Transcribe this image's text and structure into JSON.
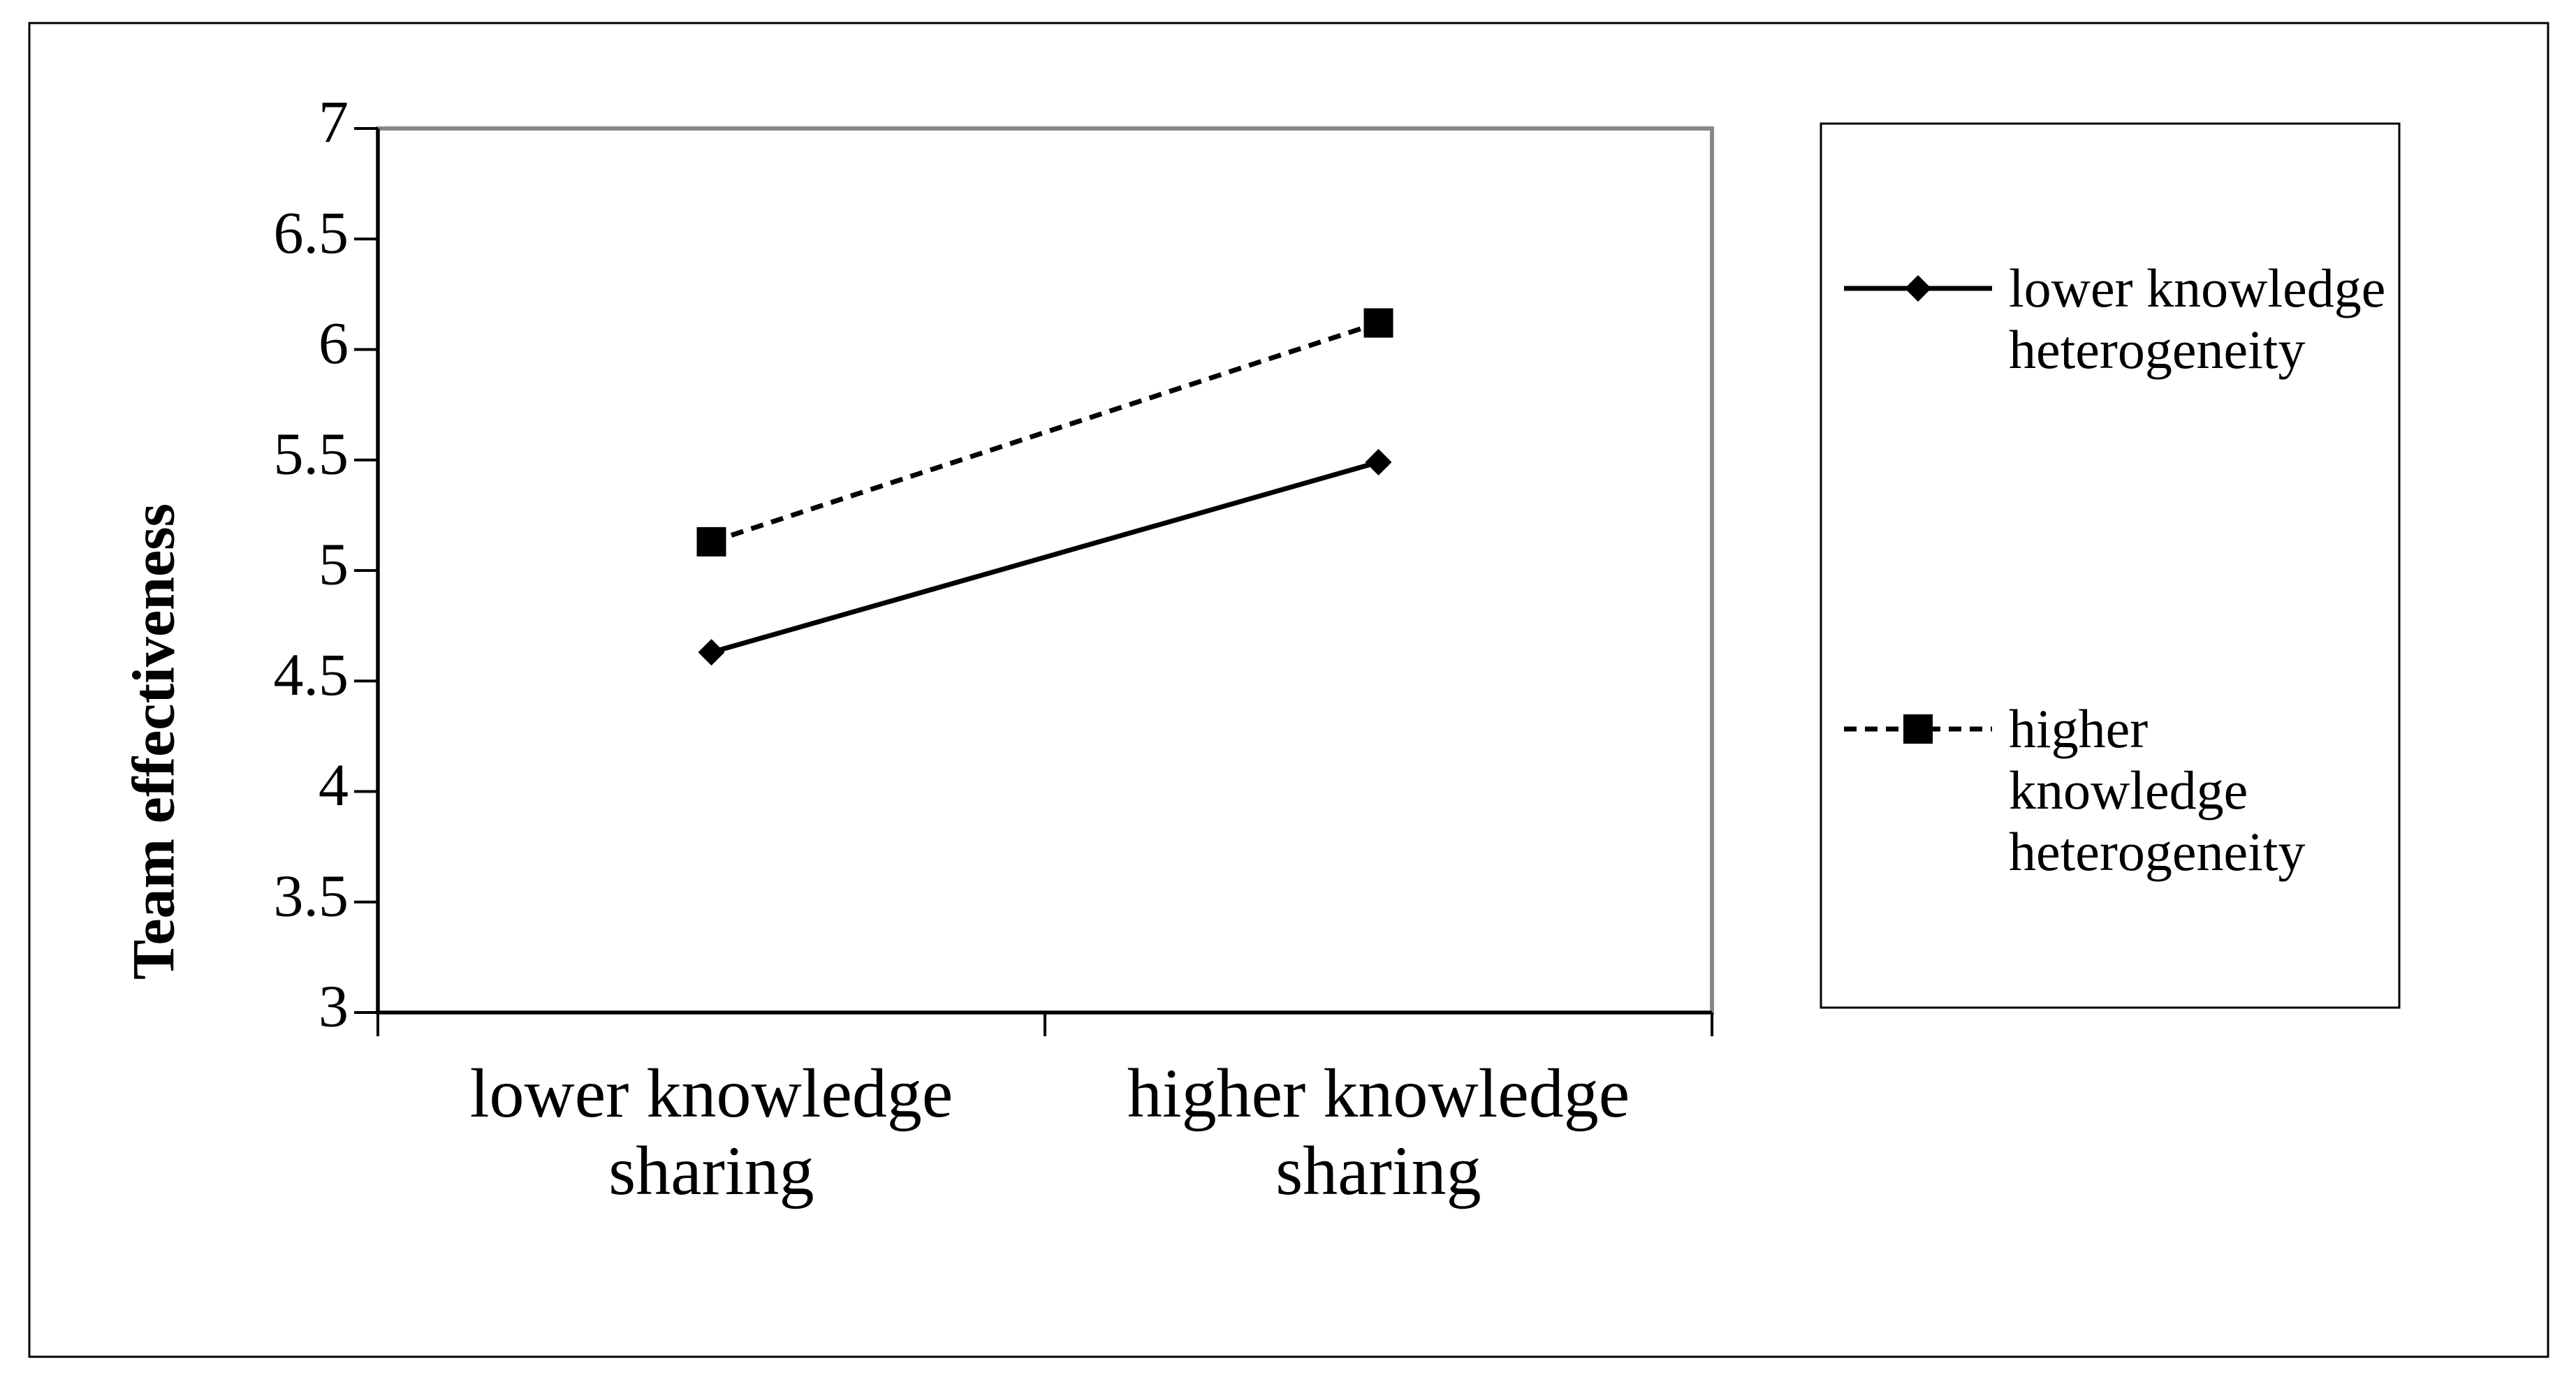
{
  "chart_data": {
    "type": "line",
    "ylabel": "Team effectiveness",
    "categories": [
      "lower knowledge sharing",
      "higher knowledge sharing"
    ],
    "series": [
      {
        "name": "lower knowledge heterogeneity",
        "color": "#000000",
        "dashed": false,
        "marker": "diamond",
        "values": [
          4.63,
          5.49
        ]
      },
      {
        "name": "higher knowledge heterogeneity",
        "color": "#000000",
        "dashed": true,
        "marker": "square",
        "values": [
          5.13,
          6.12
        ]
      }
    ],
    "ylim": [
      3,
      7
    ],
    "yticks": [
      3,
      3.5,
      4,
      4.5,
      5,
      5.5,
      6,
      6.5,
      7
    ],
    "legend": "right"
  }
}
